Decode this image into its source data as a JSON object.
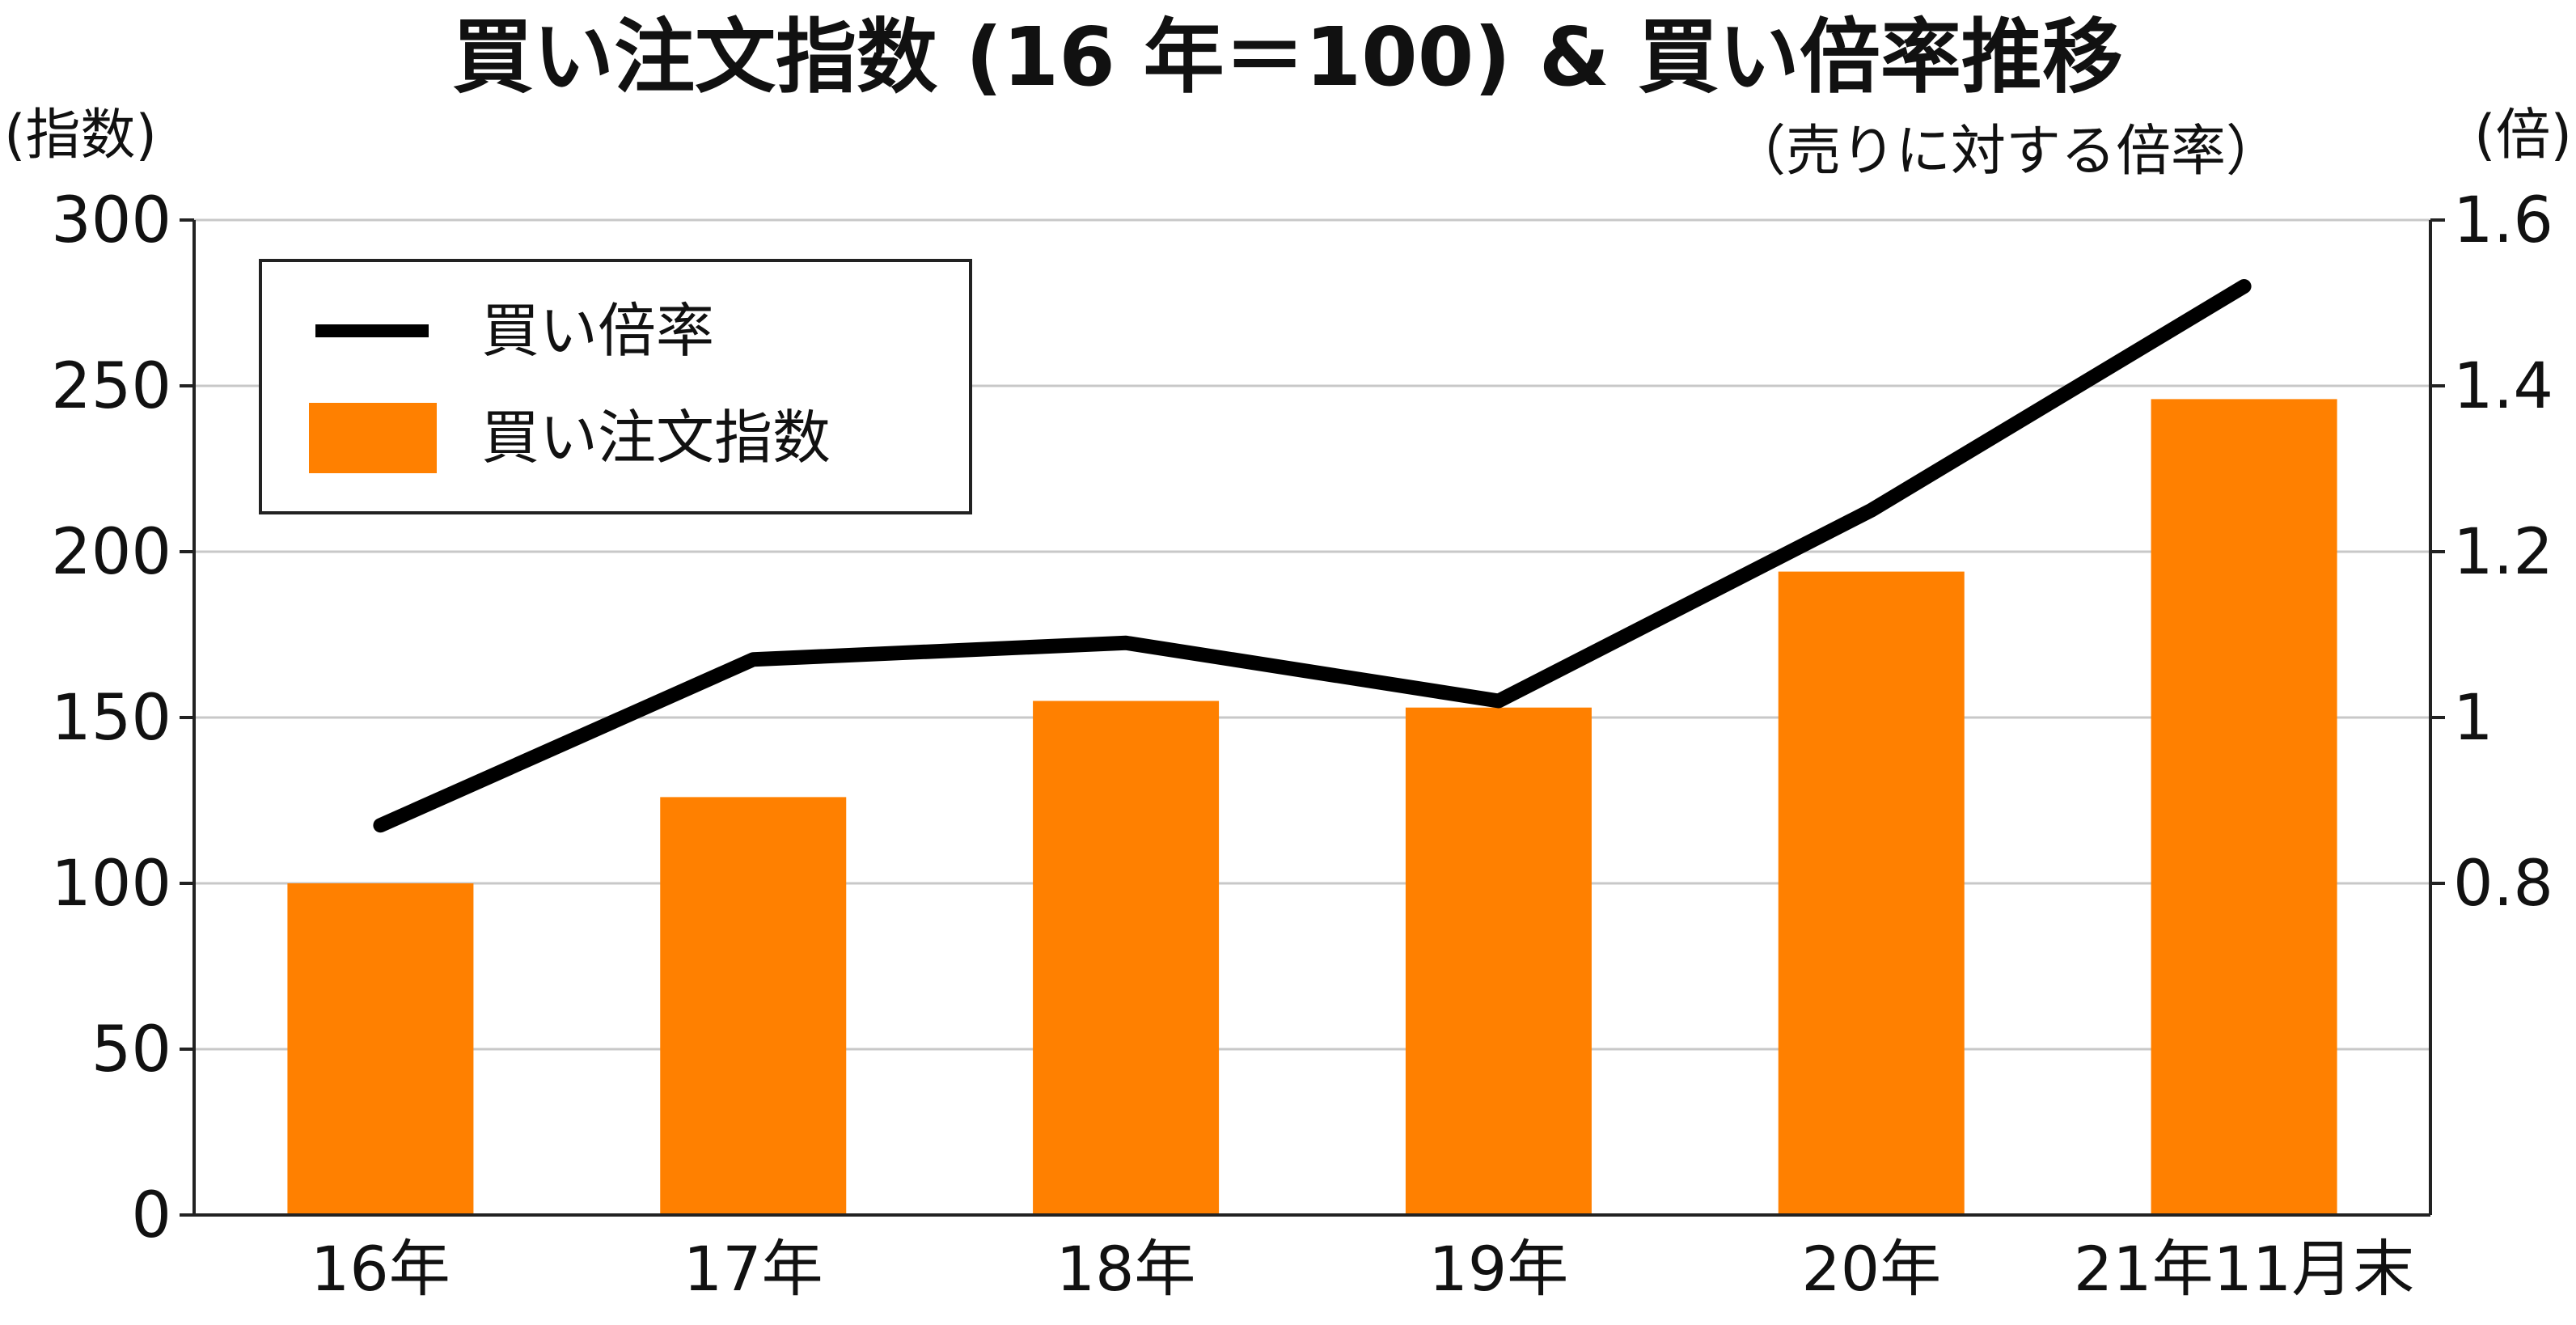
{
  "chart_data": {
    "type": "bar",
    "title": "買い注文指数 (16 年＝100) & 買い倍率推移",
    "subtitle": "（売りに対する倍率）",
    "y_left_label": "(指数)",
    "y_right_label": "(倍)",
    "categories": [
      "16年",
      "17年",
      "18年",
      "19年",
      "20年",
      "21年11月末"
    ],
    "series": [
      {
        "name": "買い注文指数",
        "type": "bar",
        "axis": "left",
        "color": "#FF8000",
        "values": [
          100,
          126,
          155,
          153,
          194,
          246
        ]
      },
      {
        "name": "買い倍率",
        "type": "line",
        "axis": "right",
        "color": "#000000",
        "values": [
          0.87,
          1.07,
          1.09,
          1.02,
          1.25,
          1.52
        ]
      }
    ],
    "y_left": {
      "min": 0,
      "max": 300,
      "ticks": [
        0,
        50,
        100,
        150,
        200,
        250,
        300
      ]
    },
    "y_right": {
      "min": 0.4,
      "max": 1.6,
      "ticks": [
        "0.8",
        "1",
        "1.2",
        "1.4",
        "1.6"
      ]
    },
    "grid": true,
    "legend": {
      "position": "top-left",
      "entries": [
        "買い倍率",
        "買い注文指数"
      ]
    }
  }
}
